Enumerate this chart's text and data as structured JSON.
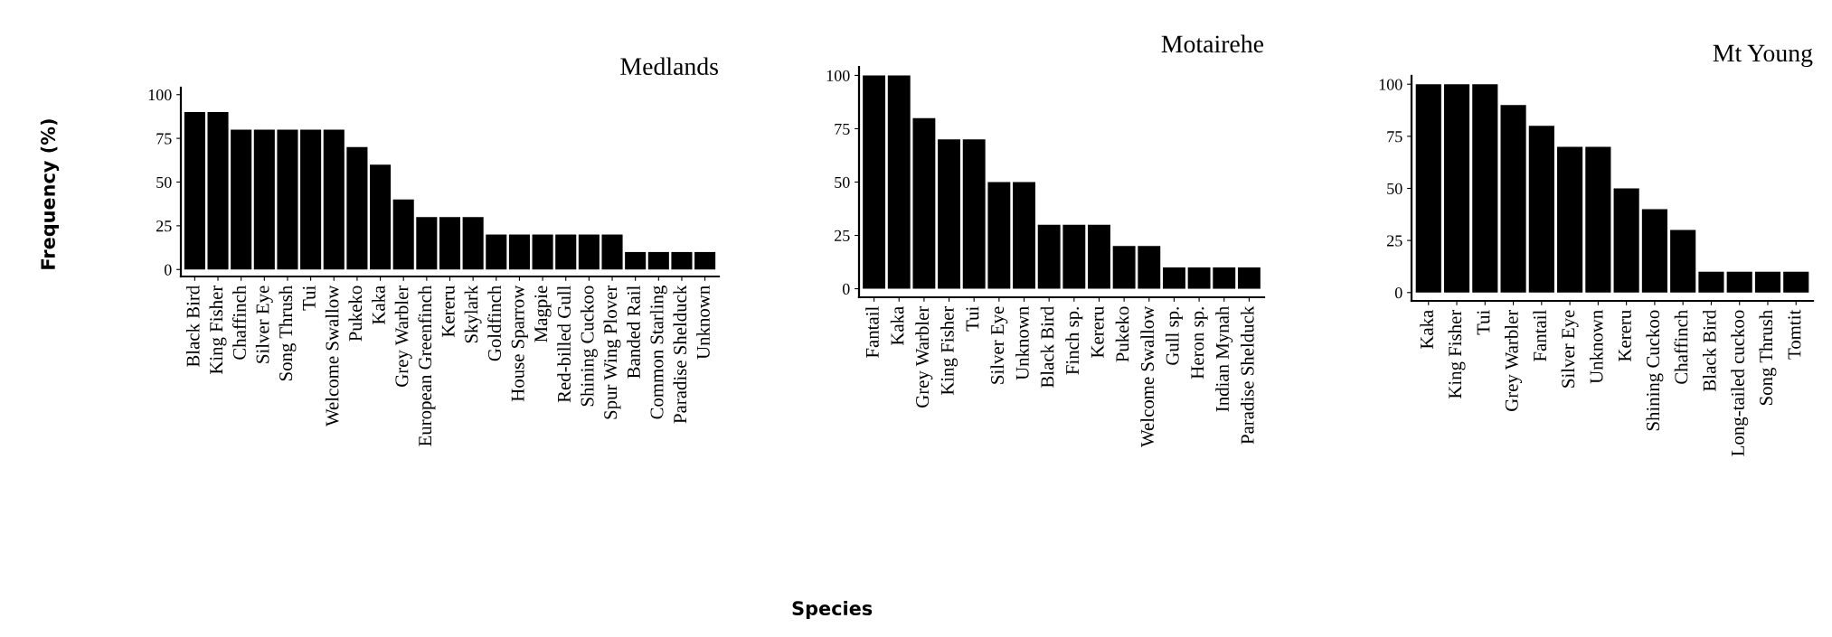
{
  "chart_data": [
    {
      "type": "bar",
      "title": "Medlands",
      "ylabel": "Frequency (%)",
      "categories": [
        "Black Bird",
        "King Fisher",
        "Chaffinch",
        "Silver Eye",
        "Song Thrush",
        "Tui",
        "Welcome Swallow",
        "Pukeko",
        "Kaka",
        "Grey Warbler",
        "European Greenfinch",
        "Kereru",
        "Skylark",
        "Goldfinch",
        "House Sparrow",
        "Magpie",
        "Red-billed Gull",
        "Shining Cuckoo",
        "Spur Wing Plover",
        "Banded Rail",
        "Common Starling",
        "Paradise Shelduck",
        "Unknown"
      ],
      "values": [
        90,
        90,
        80,
        80,
        80,
        80,
        80,
        70,
        60,
        40,
        30,
        30,
        30,
        20,
        20,
        20,
        20,
        20,
        20,
        10,
        10,
        10,
        10
      ],
      "color": "#000000",
      "ylim": [
        -4,
        104
      ],
      "yticks": [
        0,
        25,
        50,
        75,
        100
      ],
      "grid": false,
      "legend": false
    },
    {
      "type": "bar",
      "title": "Motairehe",
      "xlabel": "Species",
      "categories": [
        "Fantail",
        "Kaka",
        "Grey Warbler",
        "King Fisher",
        "Tui",
        "Silver Eye",
        "Unknown",
        "Black Bird",
        "Finch sp.",
        "Kereru",
        "Pukeko",
        "Welcome Swallow",
        "Gull sp.",
        "Heron sp.",
        "Indian Mynah",
        "Paradise Shelduck"
      ],
      "values": [
        100,
        100,
        80,
        70,
        70,
        50,
        50,
        30,
        30,
        30,
        20,
        20,
        10,
        10,
        10,
        10
      ],
      "color": "#000000",
      "ylim": [
        -4,
        104
      ],
      "yticks": [
        0,
        25,
        50,
        75,
        100
      ],
      "grid": false,
      "legend": false
    },
    {
      "type": "bar",
      "title": "Mt Young",
      "categories": [
        "Kaka",
        "King Fisher",
        "Tui",
        "Grey Warbler",
        "Fantail",
        "Silver Eye",
        "Unknown",
        "Kereru",
        "Shining Cuckoo",
        "Chaffinch",
        "Black Bird",
        "Long-tailed cuckoo",
        "Song Thrush",
        "Tomtit"
      ],
      "values": [
        100,
        100,
        100,
        90,
        80,
        70,
        70,
        50,
        40,
        30,
        10,
        10,
        10,
        10
      ],
      "color": "#000000",
      "ylim": [
        -4,
        104
      ],
      "yticks": [
        0,
        25,
        50,
        75,
        100
      ],
      "grid": false,
      "legend": false
    }
  ]
}
